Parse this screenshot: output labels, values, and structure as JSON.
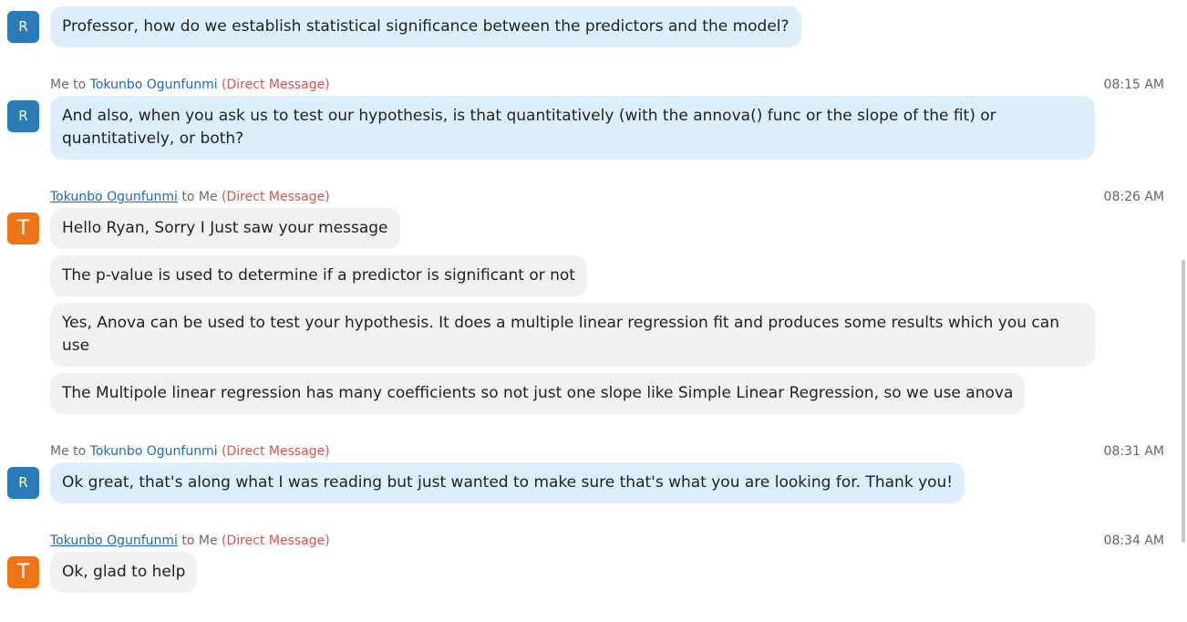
{
  "messages": [
    {
      "avatar": "R",
      "bubbles": [
        "Professor, how do we establish statistical significance between the predictors and the model?"
      ]
    },
    {
      "sender": "Me",
      "connector": "to",
      "recipient": "Tokunbo Ogunfunmi",
      "tag": "(Direct Message)",
      "time": "08:15 AM",
      "avatar": "R",
      "bubbles": [
        "And also, when you ask us to test our hypothesis, is that quantitatively (with the annova() func or the slope of the fit) or quantitatively, or both?"
      ]
    },
    {
      "sender": "Tokunbo Ogunfunmi",
      "connector": "to",
      "recipient": "Me",
      "tag": "(Direct Message)",
      "time": "08:26 AM",
      "avatar": "T",
      "bubbles": [
        "Hello Ryan, Sorry I Just saw your message",
        "The p-value is used to determine if a predictor is significant or not",
        "Yes, Anova can be used to test your hypothesis. It does a multiple linear regression fit and produces some results which you can use",
        "The Multipole linear regression has many coefficients so not just one slope like Simple Linear Regression, so we use anova"
      ]
    },
    {
      "sender": "Me",
      "connector": "to",
      "recipient": "Tokunbo Ogunfunmi",
      "tag": "(Direct Message)",
      "time": "08:31 AM",
      "avatar": "R",
      "bubbles": [
        "Ok great, that's along what I was reading but just wanted to make sure that's what you are looking for. Thank you!"
      ]
    },
    {
      "sender": "Tokunbo Ogunfunmi",
      "connector": "to",
      "recipient": "Me",
      "tag": "(Direct Message)",
      "time": "08:34 AM",
      "avatar": "T",
      "bubbles": [
        "Ok, glad to help"
      ]
    }
  ]
}
